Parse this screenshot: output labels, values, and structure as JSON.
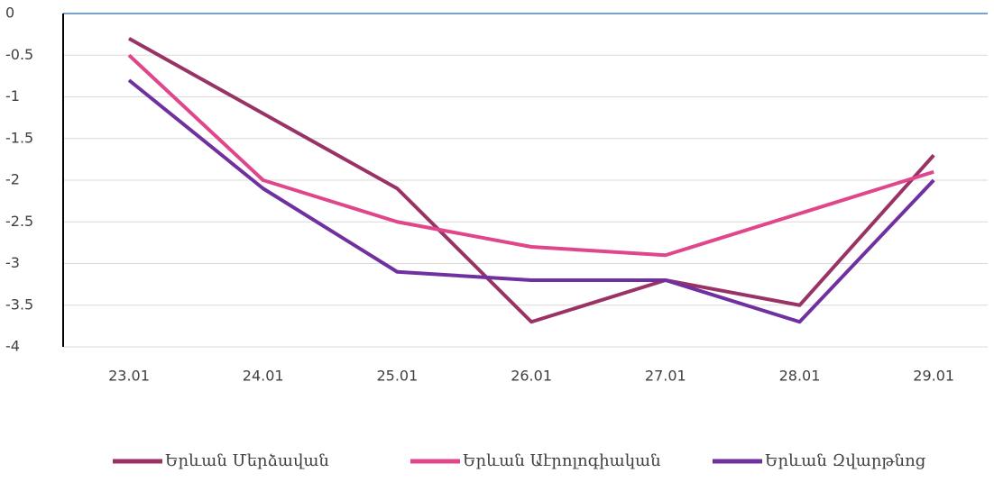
{
  "chart_data": {
    "type": "line",
    "categories": [
      "23.01",
      "24.01",
      "25.01",
      "26.01",
      "27.01",
      "28.01",
      "29.01"
    ],
    "series": [
      {
        "name": "Երևան Մերձավան",
        "color": "#993366",
        "values": [
          -0.3,
          -1.2,
          -2.1,
          -3.7,
          -3.2,
          -3.5,
          -1.7
        ]
      },
      {
        "name": "Երևան Աէրոլոգիական",
        "color": "#e0468a",
        "values": [
          -0.5,
          -2.0,
          -2.5,
          -2.8,
          -2.9,
          -2.4,
          -1.9
        ]
      },
      {
        "name": "Երևան Զվարթնոց",
        "color": "#7030a0",
        "values": [
          -0.8,
          -2.1,
          -3.1,
          -3.2,
          -3.2,
          -3.7,
          -2.0
        ]
      }
    ],
    "ylim": [
      -4,
      0
    ],
    "yticks": [
      0,
      -0.5,
      -1,
      -1.5,
      -2,
      -2.5,
      -3,
      -3.5,
      -4
    ],
    "grid": true,
    "legend": "bottom"
  }
}
